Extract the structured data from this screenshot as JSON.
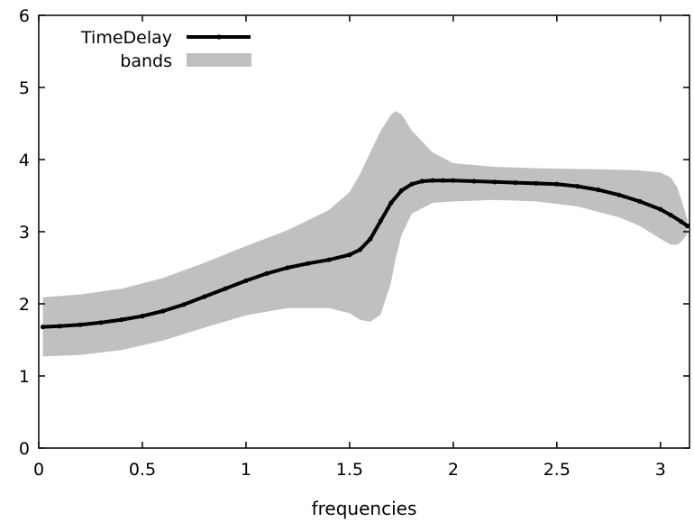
{
  "chart_data": {
    "type": "line",
    "xlabel": "frequencies",
    "ylabel": "",
    "xlim": [
      0,
      3.14
    ],
    "ylim": [
      0,
      6
    ],
    "xticks": [
      "0",
      "0.5",
      "1",
      "1.5",
      "2",
      "2.5",
      "3"
    ],
    "yticks": [
      "0",
      "1",
      "2",
      "3",
      "4",
      "5",
      "6"
    ],
    "grid": false,
    "legend_position": "top-left",
    "series": [
      {
        "name": "TimeDelay",
        "style": "line-with-points",
        "color": "#000000",
        "x": [
          0.02,
          0.1,
          0.2,
          0.3,
          0.4,
          0.5,
          0.6,
          0.7,
          0.8,
          0.9,
          1.0,
          1.1,
          1.2,
          1.3,
          1.4,
          1.5,
          1.55,
          1.6,
          1.65,
          1.7,
          1.75,
          1.8,
          1.85,
          1.9,
          1.95,
          2.0,
          2.1,
          2.2,
          2.3,
          2.4,
          2.5,
          2.6,
          2.7,
          2.8,
          2.9,
          3.0,
          3.05,
          3.1,
          3.13
        ],
        "values": [
          1.68,
          1.69,
          1.71,
          1.74,
          1.78,
          1.83,
          1.9,
          1.99,
          2.1,
          2.21,
          2.32,
          2.42,
          2.5,
          2.56,
          2.61,
          2.68,
          2.75,
          2.9,
          3.15,
          3.4,
          3.57,
          3.66,
          3.7,
          3.71,
          3.71,
          3.71,
          3.7,
          3.69,
          3.68,
          3.67,
          3.66,
          3.63,
          3.58,
          3.51,
          3.42,
          3.31,
          3.23,
          3.14,
          3.08
        ]
      },
      {
        "name": "bands",
        "style": "filled-band",
        "color": "#c0c0c0",
        "x": [
          0.02,
          0.2,
          0.4,
          0.6,
          0.8,
          1.0,
          1.2,
          1.4,
          1.5,
          1.55,
          1.6,
          1.65,
          1.7,
          1.72,
          1.75,
          1.8,
          1.9,
          2.0,
          2.2,
          2.4,
          2.6,
          2.8,
          2.9,
          3.0,
          3.05,
          3.08,
          3.1,
          3.13
        ],
        "lower": [
          1.27,
          1.29,
          1.36,
          1.49,
          1.67,
          1.84,
          1.94,
          1.94,
          1.87,
          1.78,
          1.75,
          1.85,
          2.3,
          2.6,
          2.95,
          3.25,
          3.4,
          3.42,
          3.44,
          3.42,
          3.35,
          3.2,
          3.08,
          2.9,
          2.82,
          2.82,
          2.86,
          2.97
        ],
        "upper": [
          2.09,
          2.13,
          2.21,
          2.36,
          2.57,
          2.8,
          3.02,
          3.3,
          3.55,
          3.8,
          4.1,
          4.4,
          4.62,
          4.67,
          4.63,
          4.4,
          4.1,
          3.95,
          3.9,
          3.88,
          3.87,
          3.86,
          3.85,
          3.82,
          3.75,
          3.62,
          3.45,
          3.17
        ]
      }
    ]
  }
}
